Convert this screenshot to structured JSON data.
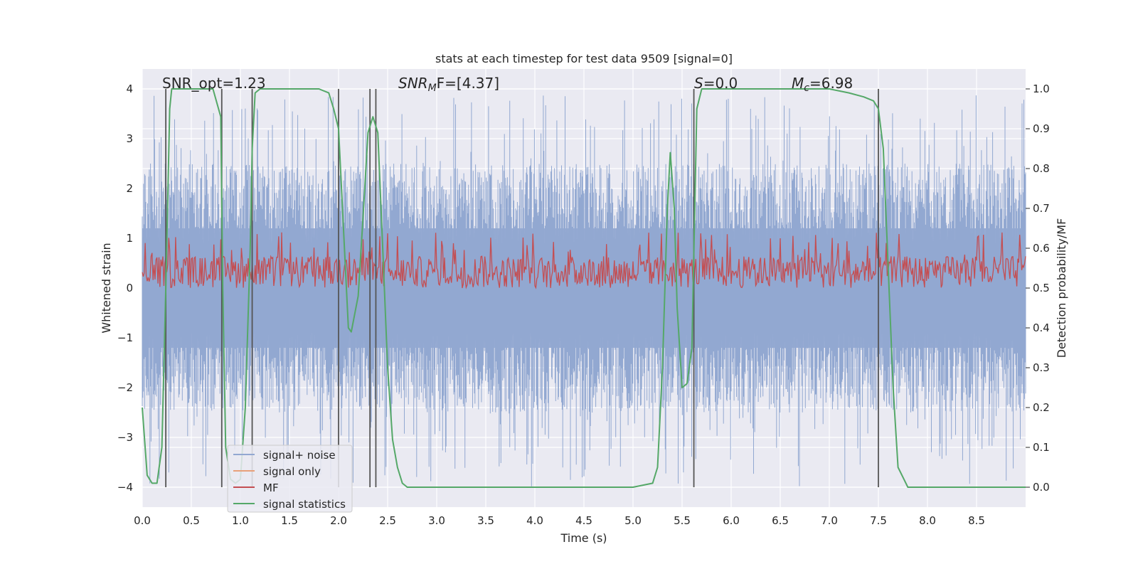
{
  "chart_data": {
    "type": "line",
    "title": "stats at each timestep for test data 9509 [signal=0]",
    "xlabel": "Time (s)",
    "ylabel_left": "Whitened strain",
    "ylabel_right": "Detection probability/MF",
    "xlim": [
      0.0,
      9.0
    ],
    "ylim_left": [
      -4.4,
      4.4
    ],
    "ylim_right": [
      -0.05,
      1.05
    ],
    "xticks": [
      "0.0",
      "0.5",
      "1.0",
      "1.5",
      "2.0",
      "2.5",
      "3.0",
      "3.5",
      "4.0",
      "4.5",
      "5.0",
      "5.5",
      "6.0",
      "6.5",
      "7.0",
      "7.5",
      "8.0",
      "8.5"
    ],
    "yticks_left": [
      "−4",
      "−3",
      "−2",
      "−1",
      "0",
      "1",
      "2",
      "3",
      "4"
    ],
    "yticks_right": [
      "0.0",
      "0.1",
      "0.2",
      "0.3",
      "0.4",
      "0.5",
      "0.6",
      "0.7",
      "0.8",
      "0.9",
      "1.0"
    ],
    "annotations": {
      "snr_opt": "SNR_opt=1.23",
      "snr_mf_main": "SNR",
      "snr_mf_sub": "M",
      "snr_mf_rest": "F=[4.37]",
      "s_main": "S",
      "s_rest": "=0.0",
      "mc_main": "M",
      "mc_sub": "c",
      "mc_rest": "=6.98"
    },
    "vlines": [
      0.24,
      0.81,
      1.12,
      2.0,
      2.32,
      2.38,
      5.62,
      7.5
    ],
    "series": [
      {
        "name": "signal+ noise",
        "axis": "left",
        "color": "#92a8d1",
        "style": "noise band",
        "amplitude_typical": 1.8,
        "peak_range": [
          -4.0,
          3.9
        ]
      },
      {
        "name": "signal only",
        "axis": "left",
        "color": "#e8a07a",
        "values": []
      },
      {
        "name": "MF",
        "axis": "right",
        "color": "#c44e52",
        "style": "noise band",
        "range": [
          0.5,
          0.62
        ]
      },
      {
        "name": "signal statistics",
        "axis": "right",
        "color": "#55a868",
        "x": [
          0.0,
          0.05,
          0.1,
          0.15,
          0.2,
          0.24,
          0.28,
          0.3,
          0.35,
          0.6,
          0.72,
          0.8,
          0.82,
          0.85,
          0.9,
          0.95,
          1.0,
          1.05,
          1.1,
          1.12,
          1.15,
          1.2,
          1.5,
          1.8,
          1.9,
          1.95,
          2.0,
          2.05,
          2.1,
          2.13,
          2.2,
          2.25,
          2.3,
          2.35,
          2.4,
          2.45,
          2.5,
          2.55,
          2.6,
          2.65,
          2.7,
          3.0,
          4.0,
          5.0,
          5.2,
          5.25,
          5.3,
          5.35,
          5.38,
          5.42,
          5.45,
          5.5,
          5.55,
          5.6,
          5.65,
          5.7,
          5.75,
          6.0,
          7.0,
          7.2,
          7.35,
          7.45,
          7.5,
          7.55,
          7.6,
          7.65,
          7.7,
          7.8,
          7.9,
          8.5,
          9.0
        ],
        "values": [
          0.2,
          0.03,
          0.01,
          0.01,
          0.1,
          0.5,
          0.95,
          1.0,
          1.0,
          1.0,
          1.0,
          0.93,
          0.5,
          0.1,
          0.02,
          0.01,
          0.02,
          0.2,
          0.6,
          0.85,
          0.99,
          1.0,
          1.0,
          1.0,
          0.99,
          0.95,
          0.9,
          0.65,
          0.4,
          0.39,
          0.48,
          0.68,
          0.89,
          0.93,
          0.89,
          0.6,
          0.3,
          0.12,
          0.05,
          0.01,
          0.0,
          0.0,
          0.0,
          0.0,
          0.01,
          0.05,
          0.3,
          0.7,
          0.84,
          0.7,
          0.45,
          0.25,
          0.26,
          0.35,
          0.95,
          1.0,
          1.0,
          1.0,
          1.0,
          0.99,
          0.98,
          0.97,
          0.95,
          0.85,
          0.55,
          0.25,
          0.05,
          0.0,
          0.0,
          0.0,
          0.0
        ]
      }
    ],
    "legend_position": "lower-left"
  }
}
